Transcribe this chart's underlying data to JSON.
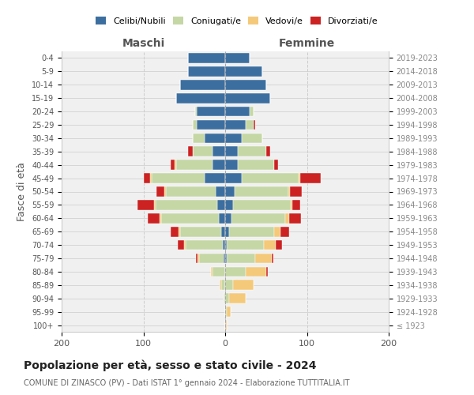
{
  "age_groups": [
    "100+",
    "95-99",
    "90-94",
    "85-89",
    "80-84",
    "75-79",
    "70-74",
    "65-69",
    "60-64",
    "55-59",
    "50-54",
    "45-49",
    "40-44",
    "35-39",
    "30-34",
    "25-29",
    "20-24",
    "15-19",
    "10-14",
    "5-9",
    "0-4"
  ],
  "birth_years": [
    "≤ 1923",
    "1924-1928",
    "1929-1933",
    "1934-1938",
    "1939-1943",
    "1944-1948",
    "1949-1953",
    "1954-1958",
    "1959-1963",
    "1964-1968",
    "1969-1973",
    "1974-1978",
    "1979-1983",
    "1984-1988",
    "1989-1993",
    "1994-1998",
    "1999-2003",
    "2004-2008",
    "2009-2013",
    "2014-2018",
    "2019-2023"
  ],
  "colors": {
    "celibi": "#3c6fa0",
    "coniugati": "#c5d7a5",
    "vedovi": "#f5c97a",
    "divorziati": "#cc2222"
  },
  "males": {
    "celibi": [
      0,
      0,
      0,
      0,
      0,
      2,
      3,
      5,
      8,
      10,
      12,
      25,
      15,
      15,
      25,
      35,
      35,
      60,
      55,
      45,
      45
    ],
    "coniugati": [
      0,
      0,
      2,
      5,
      15,
      30,
      45,
      50,
      70,
      75,
      60,
      65,
      45,
      25,
      15,
      5,
      2,
      0,
      0,
      0,
      0
    ],
    "vedovi": [
      0,
      0,
      0,
      2,
      2,
      2,
      2,
      2,
      2,
      2,
      2,
      2,
      2,
      0,
      0,
      0,
      0,
      0,
      0,
      0,
      0
    ],
    "divorziati": [
      0,
      0,
      0,
      0,
      0,
      2,
      8,
      10,
      15,
      20,
      10,
      8,
      5,
      5,
      0,
      0,
      0,
      0,
      0,
      0,
      0
    ]
  },
  "females": {
    "celibi": [
      0,
      0,
      0,
      0,
      0,
      2,
      2,
      5,
      8,
      10,
      12,
      20,
      15,
      15,
      20,
      25,
      30,
      55,
      50,
      45,
      30
    ],
    "coniugati": [
      0,
      2,
      5,
      10,
      25,
      35,
      45,
      55,
      65,
      70,
      65,
      70,
      45,
      35,
      25,
      10,
      5,
      0,
      0,
      0,
      0
    ],
    "vedovi": [
      2,
      5,
      20,
      25,
      25,
      20,
      15,
      8,
      5,
      2,
      2,
      2,
      0,
      0,
      0,
      0,
      0,
      0,
      0,
      0,
      0
    ],
    "divorziati": [
      0,
      0,
      0,
      0,
      2,
      2,
      8,
      10,
      15,
      10,
      15,
      25,
      5,
      5,
      0,
      2,
      0,
      0,
      0,
      0,
      0
    ]
  },
  "title": "Popolazione per età, sesso e stato civile - 2024",
  "subtitle": "COMUNE DI ZINASCO (PV) - Dati ISTAT 1° gennaio 2024 - Elaborazione TUTTITALIA.IT",
  "xlabel_left": "Maschi",
  "xlabel_right": "Femmine",
  "ylabel_left": "Fasce di età",
  "xlim": 200,
  "legend_labels": [
    "Celibi/Nubili",
    "Coniugati/e",
    "Vedovi/e",
    "Divorziati/e"
  ]
}
